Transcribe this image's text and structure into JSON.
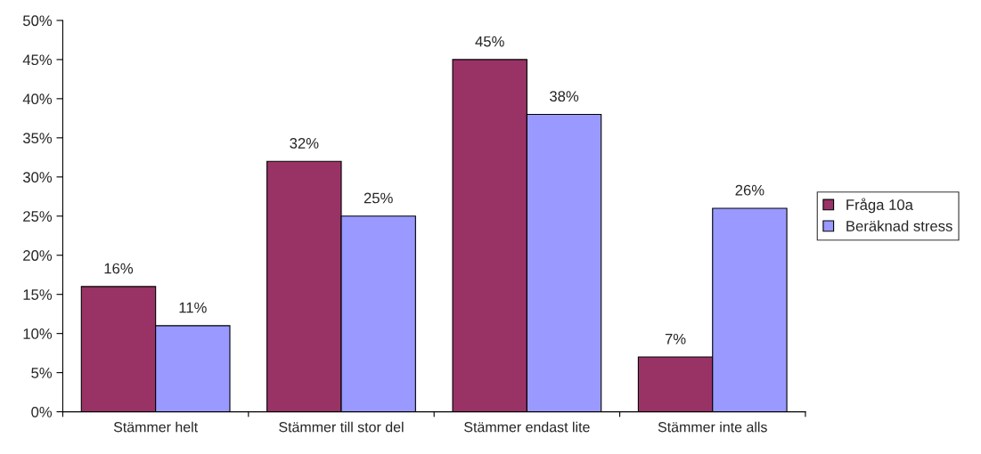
{
  "chart_data": {
    "type": "bar",
    "categories": [
      "Stämmer helt",
      "Stämmer till stor del",
      "Stämmer endast lite",
      "Stämmer inte alls"
    ],
    "series": [
      {
        "name": "Fråga 10a",
        "color": "#993366",
        "values": [
          16,
          32,
          45,
          7
        ],
        "value_labels": [
          "16%",
          "32%",
          "45%",
          "7%"
        ]
      },
      {
        "name": "Beräknad stress",
        "color": "#9999ff",
        "values": [
          11,
          25,
          38,
          26
        ],
        "value_labels": [
          "11%",
          "25%",
          "38%",
          "26%"
        ]
      }
    ],
    "ylim": [
      0,
      50
    ],
    "yticks": [
      {
        "value": 0,
        "label": "0%"
      },
      {
        "value": 5,
        "label": "5%"
      },
      {
        "value": 10,
        "label": "10%"
      },
      {
        "value": 15,
        "label": "15%"
      },
      {
        "value": 20,
        "label": "20%"
      },
      {
        "value": 25,
        "label": "25%"
      },
      {
        "value": 30,
        "label": "30%"
      },
      {
        "value": 35,
        "label": "35%"
      },
      {
        "value": 40,
        "label": "40%"
      },
      {
        "value": 45,
        "label": "45%"
      },
      {
        "value": 50,
        "label": "50%"
      }
    ],
    "legend": "right",
    "grid": false
  }
}
